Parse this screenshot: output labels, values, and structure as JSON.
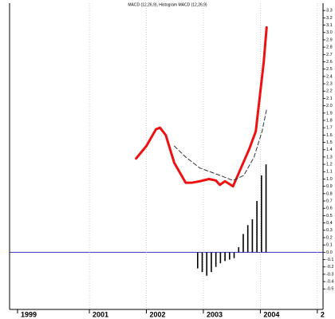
{
  "chart_data": {
    "type": "line",
    "title": "MACD (12,26,9), Histogram MACD (12,26,9)",
    "xstart_label": "1999",
    "xlim": [
      1999.6,
      2005.1
    ],
    "xticks": [
      2001,
      2002,
      2003,
      2004,
      {
        "value": 2005,
        "label": "2"
      }
    ],
    "xgrid": true,
    "ylim": [
      -0.78,
      3.4
    ],
    "yticks": [
      3.3,
      3.2,
      3.1,
      {
        "value": 3,
        "label": "3.0"
      },
      2.9,
      2.8,
      2.7,
      2.6,
      2.5,
      2.4,
      2.3,
      2.2,
      2.1,
      {
        "value": 2,
        "label": "2.0"
      },
      1.9,
      1.8,
      1.7,
      1.6,
      1.5,
      1.4,
      1.3,
      1.2,
      1.1,
      {
        "value": 1,
        "label": "1.0"
      },
      0.9,
      0.8,
      0.7,
      0.6,
      0.5,
      0.4,
      0.3,
      0.2,
      0.1,
      {
        "value": 0,
        "label": "0.0"
      },
      -0.1,
      -0.2,
      -0.3,
      -0.4,
      -0.5
    ],
    "zero_line_color": "#3333cc",
    "series": [
      {
        "type": "line",
        "color": "#ee1111",
        "width": 3,
        "x": [
          2001.82,
          2002.0,
          2002.17,
          2002.24,
          2002.34,
          2002.49,
          2002.69,
          2002.8,
          2002.94,
          2003.1,
          2003.22,
          2003.29,
          2003.38,
          2003.52,
          2003.66,
          2003.8,
          2003.92,
          2004.06,
          2004.11
        ],
        "values": [
          1.28,
          1.45,
          1.68,
          1.7,
          1.6,
          1.22,
          0.95,
          0.95,
          0.97,
          1.0,
          0.98,
          0.92,
          0.97,
          0.9,
          1.15,
          1.4,
          1.65,
          2.6,
          3.07
        ]
      },
      {
        "type": "line",
        "color": "#333333",
        "width": 1,
        "dash": true,
        "x": [
          2002.49,
          2002.69,
          2002.94,
          2003.29,
          2003.52,
          2003.71,
          2003.89,
          2004.03,
          2004.11
        ],
        "values": [
          1.45,
          1.3,
          1.15,
          1.05,
          0.98,
          1.05,
          1.3,
          1.65,
          1.95
        ]
      },
      {
        "type": "bar",
        "color": "#000000",
        "width": 1.6,
        "x": [
          2002.9,
          2002.98,
          2003.06,
          2003.14,
          2003.22,
          2003.3,
          2003.38,
          2003.46,
          2003.54,
          2003.62,
          2003.7,
          2003.78,
          2003.86,
          2003.94,
          2004.02,
          2004.1
        ],
        "values": [
          -0.22,
          -0.27,
          -0.32,
          -0.27,
          -0.2,
          -0.15,
          -0.12,
          -0.1,
          -0.08,
          0.07,
          0.25,
          0.37,
          0.45,
          0.7,
          1.05,
          1.2
        ]
      }
    ]
  }
}
